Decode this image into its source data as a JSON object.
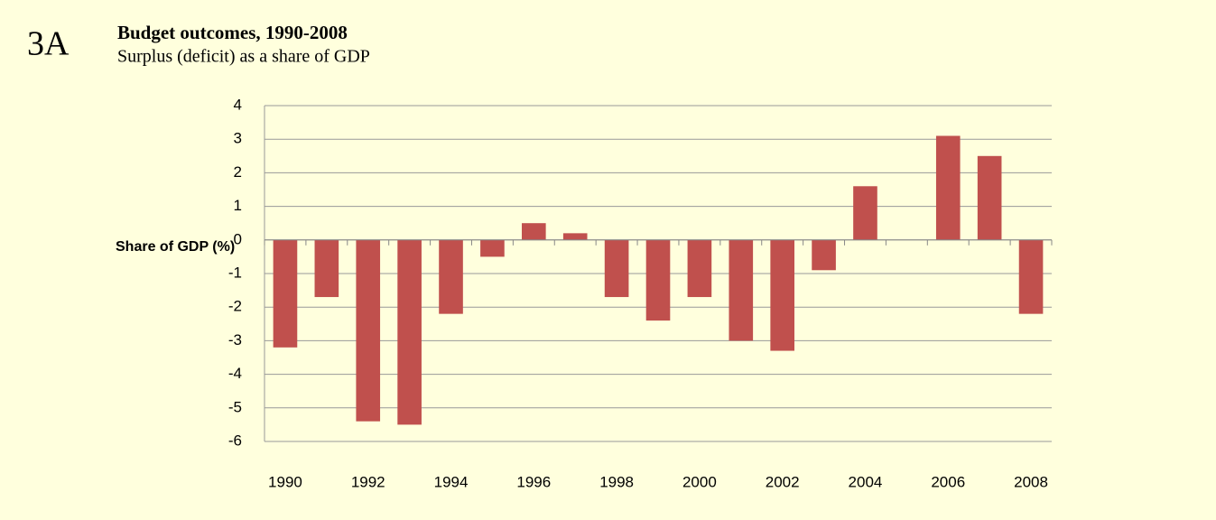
{
  "chart_data": {
    "type": "bar",
    "panel_label": "3A",
    "title": "Budget outcomes, 1990-2008",
    "subtitle": "Surplus (deficit) as a share of GDP",
    "y_label": "Share of GDP (%)",
    "categories": [
      "1990",
      null,
      "1992",
      null,
      "1994",
      null,
      "1996",
      null,
      "1998",
      null,
      "2000",
      null,
      "2002",
      null,
      "2004",
      null,
      "2006",
      null,
      "2008"
    ],
    "values": [
      -3.2,
      -1.7,
      -5.4,
      -5.5,
      -2.2,
      -0.5,
      0.5,
      0.2,
      -1.7,
      -2.4,
      -1.7,
      -3.0,
      -3.3,
      -0.9,
      1.6,
      0,
      3.1,
      2.5,
      -2.2
    ],
    "color": "#c0504d",
    "ylim": [
      -6,
      4
    ],
    "yticks": [
      -6,
      -5,
      -4,
      -3,
      -2,
      -1,
      0,
      1,
      2,
      3,
      4
    ],
    "grid": true
  }
}
